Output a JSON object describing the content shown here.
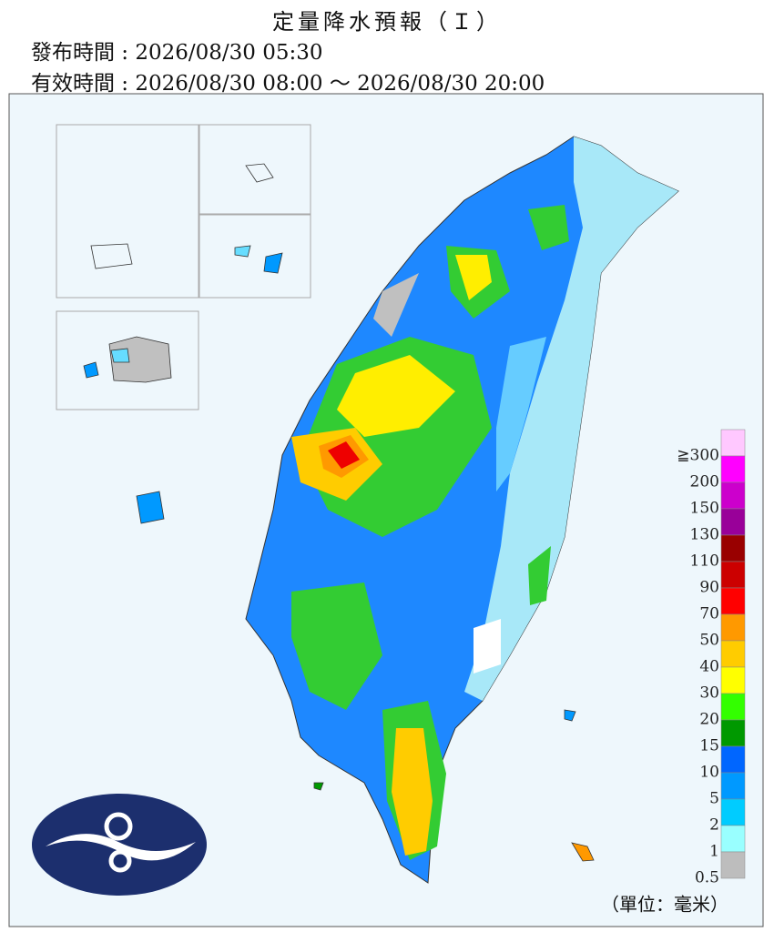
{
  "header": {
    "title": "定量降水預報（Ｉ）",
    "issue_time": "發布時間 : 2026/08/30 05:30",
    "valid_time": "有效時間 : 2026/08/30 08:00 ～ 2026/08/30 20:00"
  },
  "legend": {
    "entries": [
      {
        "label": "≧300",
        "color": "#ffc8ff"
      },
      {
        "label": "200",
        "color": "#ff00ff"
      },
      {
        "label": "150",
        "color": "#cc00cc"
      },
      {
        "label": "130",
        "color": "#990099"
      },
      {
        "label": "110",
        "color": "#990000"
      },
      {
        "label": "90",
        "color": "#cc0000"
      },
      {
        "label": "70",
        "color": "#ff0000"
      },
      {
        "label": "50",
        "color": "#ff9900"
      },
      {
        "label": "40",
        "color": "#ffcc00"
      },
      {
        "label": "30",
        "color": "#ffff00"
      },
      {
        "label": "20",
        "color": "#33ff00"
      },
      {
        "label": "15",
        "color": "#009900"
      },
      {
        "label": "10",
        "color": "#0066ff"
      },
      {
        "label": "5",
        "color": "#0099ff"
      },
      {
        "label": "2",
        "color": "#00ccff"
      },
      {
        "label": "1",
        "color": "#99ffff"
      },
      {
        "label": "0.5",
        "color": "#bdbdbd"
      }
    ],
    "unit": "（單位：毫米）"
  }
}
